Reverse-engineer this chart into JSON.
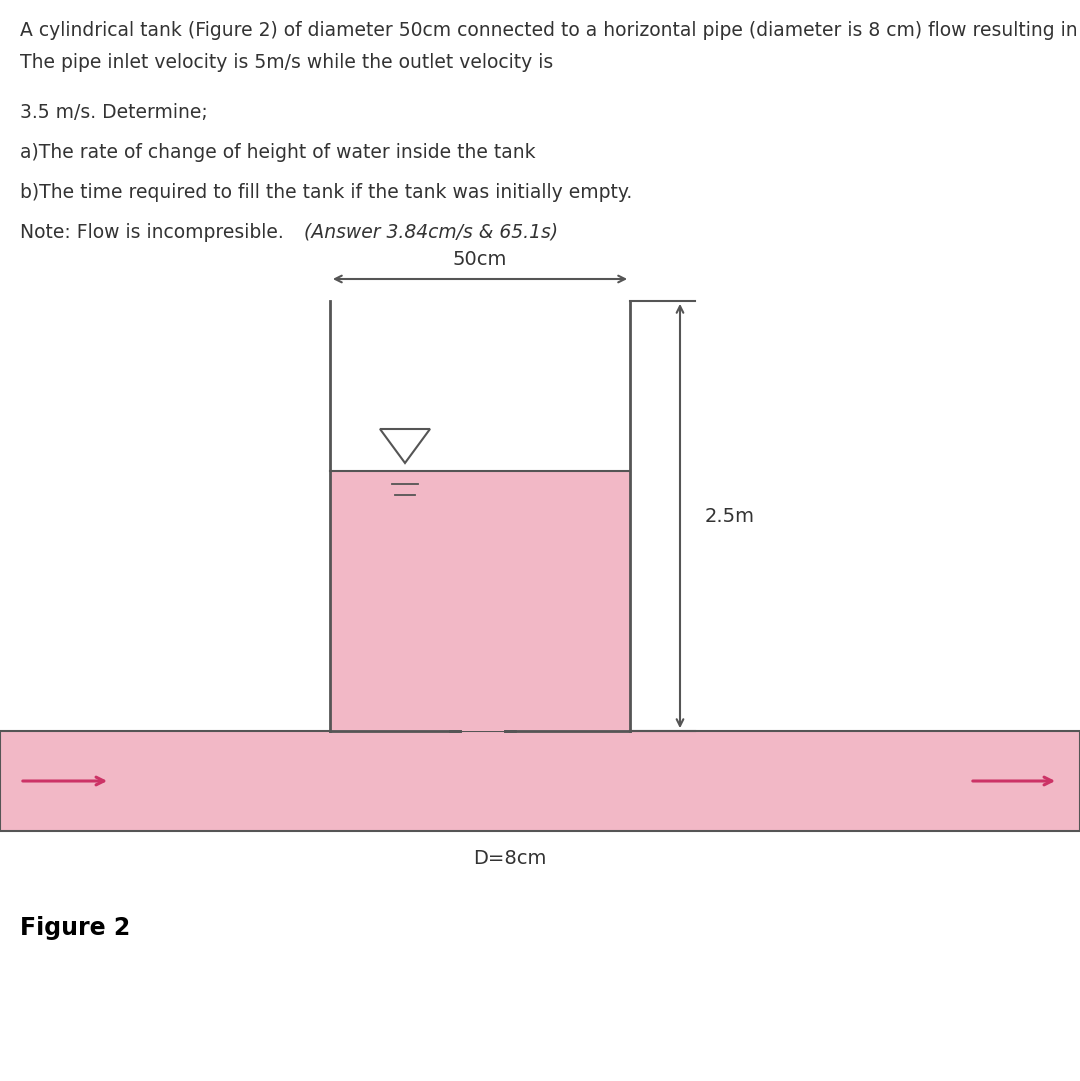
{
  "bg_color": "#ffffff",
  "pink_fill": "#f2b8c6",
  "border_color": "#555555",
  "arrow_color": "#cc3366",
  "text_color": "#333333",
  "tank_color": "#555555",
  "title_line1": "A cylindrical tank (Figure 2) of diameter 50cm connected to a horizontal pipe (diameter is 8 cm) flow resulting in tank filling.",
  "title_line2": "The pipe inlet velocity is 5m/s while the outlet velocity is",
  "body_line1": "3.5 m/s. Determine;",
  "body_line2": "a)The rate of change of height of water inside the tank",
  "body_line3": "b)The time required to fill the tank if the tank was initially empty.",
  "note_normal": "Note: Flow is incompresible. ",
  "note_italic": "(Answer 3.84cm/s & 65.1s)",
  "dim_50cm": "50cm",
  "dim_25m": "2.5m",
  "dim_D8cm": "D=8cm",
  "fig_label": "Figure 2",
  "font_size_body": 13.5,
  "font_size_dim": 14,
  "font_size_fig": 17,
  "fig_w": 10.8,
  "fig_h": 10.81
}
